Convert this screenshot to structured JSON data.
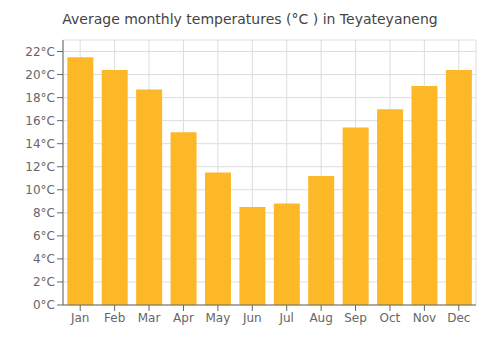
{
  "chart_data": {
    "type": "bar",
    "title": "Average monthly temperatures (°C ) in Teyateyaneng",
    "categories": [
      "Jan",
      "Feb",
      "Mar",
      "Apr",
      "May",
      "Jun",
      "Jul",
      "Aug",
      "Sep",
      "Oct",
      "Nov",
      "Dec"
    ],
    "values": [
      21.5,
      20.4,
      18.7,
      15.0,
      11.5,
      8.5,
      8.8,
      11.2,
      15.4,
      17.0,
      19.0,
      20.4
    ],
    "color": "#FDB827",
    "ylim": [
      0,
      23
    ],
    "yticks": [
      {
        "value": 0,
        "label": "0°C"
      },
      {
        "value": 2,
        "label": "2°C"
      },
      {
        "value": 4,
        "label": "4°C"
      },
      {
        "value": 6,
        "label": "6°C"
      },
      {
        "value": 8,
        "label": "8°C"
      },
      {
        "value": 10,
        "label": "10°C"
      },
      {
        "value": 12,
        "label": "12°C"
      },
      {
        "value": 14,
        "label": "14°C"
      },
      {
        "value": 16,
        "label": "16°C"
      },
      {
        "value": 18,
        "label": "18°C"
      },
      {
        "value": 20,
        "label": "20°C"
      },
      {
        "value": 22,
        "label": "22°C"
      }
    ],
    "grid": true
  }
}
